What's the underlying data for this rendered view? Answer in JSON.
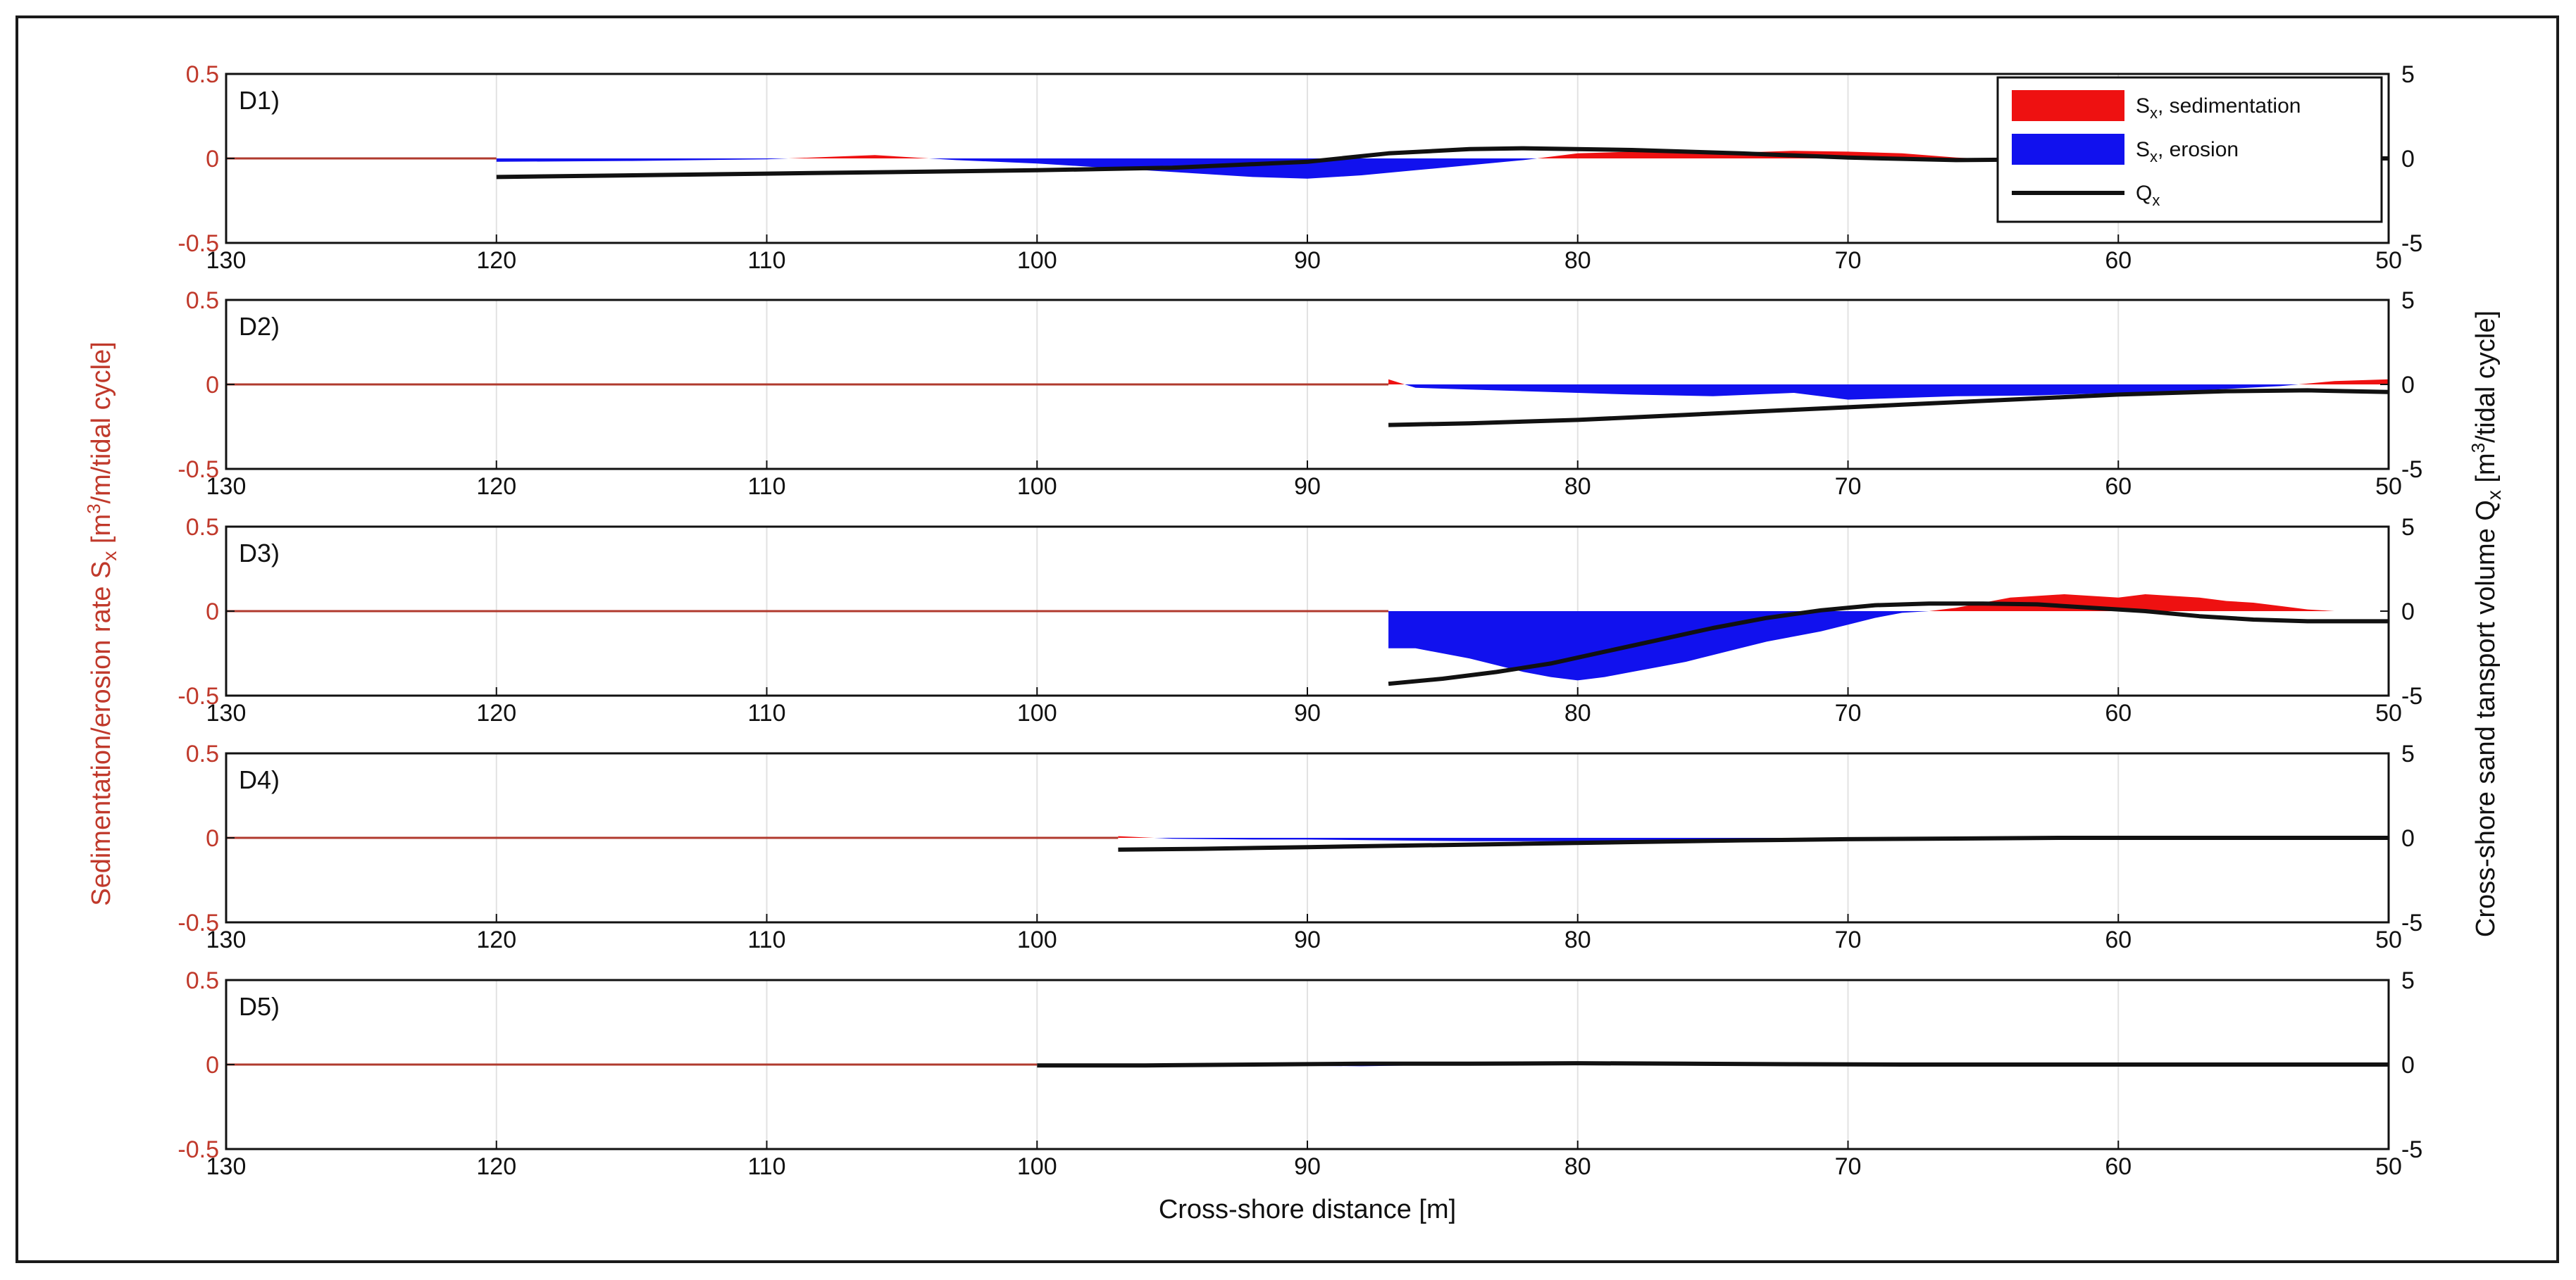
{
  "chart_data": {
    "type": "area",
    "xlabel": "Cross-shore distance [m]",
    "ylabel_left": "Sedimentation/erosion rate S_x [m³/m/tidal cycle]",
    "ylabel_left_parts": [
      "Sedimentation/erosion rate S",
      "x",
      " [m",
      "3",
      "/m/tidal cycle]"
    ],
    "ylabel_right": "Cross-shore sand tansport volume Q_x [m³/tidal cycle]",
    "ylabel_right_parts": [
      "Cross-shore sand tansport volume Q",
      "x",
      " [m",
      "3",
      "/tidal cycle]"
    ],
    "xlim": [
      130,
      50
    ],
    "x_reversed": true,
    "x_ticks": [
      130,
      120,
      110,
      100,
      90,
      80,
      70,
      60,
      50
    ],
    "ylim_left": [
      -0.5,
      0.5
    ],
    "y_ticks_left": [
      "0.5",
      "0",
      "-0.5"
    ],
    "ylim_right": [
      -5,
      5
    ],
    "y_ticks_right": [
      "5",
      "0",
      "-5"
    ],
    "grid": "vertical",
    "legend": {
      "placement": "top-right",
      "entries": [
        {
          "label": "S",
          "sub": "x",
          "suffix": ", sedimentation",
          "color": "#ee1111",
          "kind": "patch"
        },
        {
          "label": "S",
          "sub": "x",
          "suffix": ", erosion",
          "color": "#1111ee",
          "kind": "patch"
        },
        {
          "label": "Q",
          "sub": "x",
          "suffix": "",
          "color": "#111111",
          "kind": "line"
        }
      ]
    },
    "colors": {
      "sedimentation": "#ee1111",
      "erosion": "#1111ee",
      "transport": "#111111",
      "baseline": "#b03a2e"
    },
    "panels": [
      {
        "label": "D1)",
        "start_x": 120,
        "S_x": [
          [
            120,
            -0.02
          ],
          [
            115,
            -0.015
          ],
          [
            110,
            -0.005
          ],
          [
            106,
            0.02
          ],
          [
            103,
            -0.01
          ],
          [
            100,
            -0.03
          ],
          [
            97,
            -0.06
          ],
          [
            94,
            -0.09
          ],
          [
            92,
            -0.11
          ],
          [
            90,
            -0.12
          ],
          [
            88,
            -0.1
          ],
          [
            86,
            -0.07
          ],
          [
            84,
            -0.04
          ],
          [
            82,
            -0.01
          ],
          [
            80,
            0.03
          ],
          [
            78,
            0.04
          ],
          [
            76,
            0.04
          ],
          [
            74,
            0.035
          ],
          [
            72,
            0.045
          ],
          [
            70,
            0.04
          ],
          [
            68,
            0.03
          ],
          [
            66,
            0.005
          ],
          [
            64,
            -0.01
          ],
          [
            62,
            0.005
          ],
          [
            60,
            -0.005
          ],
          [
            55,
            0.0
          ],
          [
            50,
            0.0
          ]
        ],
        "Q_x": [
          [
            120,
            -1.1
          ],
          [
            110,
            -0.9
          ],
          [
            100,
            -0.7
          ],
          [
            95,
            -0.55
          ],
          [
            90,
            -0.2
          ],
          [
            87,
            0.3
          ],
          [
            84,
            0.55
          ],
          [
            82,
            0.6
          ],
          [
            78,
            0.5
          ],
          [
            74,
            0.3
          ],
          [
            70,
            0.05
          ],
          [
            66,
            -0.1
          ],
          [
            62,
            -0.05
          ],
          [
            58,
            0.0
          ],
          [
            55,
            0.0
          ],
          [
            50,
            0.0
          ]
        ]
      },
      {
        "label": "D2)",
        "start_x": 87,
        "S_x": [
          [
            87,
            0.03
          ],
          [
            86,
            -0.02
          ],
          [
            84,
            -0.03
          ],
          [
            82,
            -0.04
          ],
          [
            80,
            -0.05
          ],
          [
            78,
            -0.06
          ],
          [
            75,
            -0.07
          ],
          [
            72,
            -0.05
          ],
          [
            70,
            -0.09
          ],
          [
            68,
            -0.08
          ],
          [
            66,
            -0.07
          ],
          [
            63,
            -0.065
          ],
          [
            60,
            -0.05
          ],
          [
            57,
            -0.035
          ],
          [
            54,
            -0.01
          ],
          [
            52,
            0.02
          ],
          [
            50,
            0.03
          ]
        ],
        "Q_x": [
          [
            87,
            -2.4
          ],
          [
            84,
            -2.3
          ],
          [
            80,
            -2.1
          ],
          [
            76,
            -1.8
          ],
          [
            72,
            -1.5
          ],
          [
            68,
            -1.2
          ],
          [
            64,
            -0.9
          ],
          [
            60,
            -0.6
          ],
          [
            56,
            -0.4
          ],
          [
            53,
            -0.35
          ],
          [
            50,
            -0.45
          ]
        ]
      },
      {
        "label": "D3)",
        "start_x": 87,
        "S_x": [
          [
            87,
            -0.22
          ],
          [
            86,
            -0.22
          ],
          [
            85,
            -0.25
          ],
          [
            84,
            -0.28
          ],
          [
            83,
            -0.32
          ],
          [
            82,
            -0.36
          ],
          [
            81,
            -0.39
          ],
          [
            80,
            -0.41
          ],
          [
            79,
            -0.39
          ],
          [
            78,
            -0.36
          ],
          [
            77,
            -0.33
          ],
          [
            76,
            -0.3
          ],
          [
            75,
            -0.26
          ],
          [
            74,
            -0.22
          ],
          [
            73,
            -0.18
          ],
          [
            72,
            -0.15
          ],
          [
            71,
            -0.12
          ],
          [
            70,
            -0.08
          ],
          [
            69,
            -0.04
          ],
          [
            68,
            -0.01
          ],
          [
            67,
            0.0
          ],
          [
            66,
            0.02
          ],
          [
            65,
            0.05
          ],
          [
            64,
            0.08
          ],
          [
            63,
            0.09
          ],
          [
            62,
            0.1
          ],
          [
            61,
            0.09
          ],
          [
            60,
            0.08
          ],
          [
            59,
            0.1
          ],
          [
            58,
            0.09
          ],
          [
            57,
            0.08
          ],
          [
            56,
            0.06
          ],
          [
            55,
            0.05
          ],
          [
            54,
            0.03
          ],
          [
            53,
            0.01
          ],
          [
            52,
            0.0
          ],
          [
            50,
            0.0
          ]
        ],
        "Q_x": [
          [
            87,
            -4.3
          ],
          [
            85,
            -4.0
          ],
          [
            83,
            -3.6
          ],
          [
            81,
            -3.1
          ],
          [
            79,
            -2.4
          ],
          [
            77,
            -1.7
          ],
          [
            75,
            -1.0
          ],
          [
            73,
            -0.4
          ],
          [
            71,
            0.05
          ],
          [
            69,
            0.35
          ],
          [
            67,
            0.45
          ],
          [
            65,
            0.45
          ],
          [
            63,
            0.4
          ],
          [
            61,
            0.2
          ],
          [
            59,
            0.0
          ],
          [
            57,
            -0.3
          ],
          [
            55,
            -0.5
          ],
          [
            53,
            -0.6
          ],
          [
            50,
            -0.6
          ]
        ]
      },
      {
        "label": "D4)",
        "start_x": 97,
        "S_x": [
          [
            97,
            0.01
          ],
          [
            95,
            -0.005
          ],
          [
            92,
            -0.01
          ],
          [
            90,
            -0.01
          ],
          [
            87,
            -0.015
          ],
          [
            84,
            -0.02
          ],
          [
            80,
            -0.02
          ],
          [
            76,
            -0.015
          ],
          [
            72,
            -0.01
          ],
          [
            68,
            -0.005
          ],
          [
            64,
            0.005
          ],
          [
            60,
            0.0
          ],
          [
            56,
            -0.005
          ],
          [
            53,
            0.005
          ],
          [
            50,
            0.0
          ]
        ],
        "Q_x": [
          [
            97,
            -0.7
          ],
          [
            94,
            -0.65
          ],
          [
            90,
            -0.55
          ],
          [
            86,
            -0.45
          ],
          [
            82,
            -0.35
          ],
          [
            78,
            -0.25
          ],
          [
            74,
            -0.15
          ],
          [
            70,
            -0.08
          ],
          [
            66,
            -0.04
          ],
          [
            62,
            0.0
          ],
          [
            58,
            0.0
          ],
          [
            54,
            0.0
          ],
          [
            50,
            0.0
          ]
        ]
      },
      {
        "label": "D5)",
        "start_x": 100,
        "S_x": [
          [
            100,
            0.0
          ],
          [
            96,
            -0.005
          ],
          [
            92,
            -0.005
          ],
          [
            88,
            -0.01
          ],
          [
            86,
            -0.005
          ],
          [
            84,
            0.005
          ],
          [
            80,
            0.005
          ],
          [
            76,
            0.0
          ],
          [
            70,
            0.0
          ],
          [
            60,
            0.0
          ],
          [
            50,
            0.0
          ]
        ],
        "Q_x": [
          [
            100,
            -0.05
          ],
          [
            96,
            -0.05
          ],
          [
            92,
            0.0
          ],
          [
            88,
            0.05
          ],
          [
            84,
            0.05
          ],
          [
            80,
            0.08
          ],
          [
            76,
            0.05
          ],
          [
            72,
            0.02
          ],
          [
            68,
            0.0
          ],
          [
            60,
            0.0
          ],
          [
            50,
            0.0
          ]
        ]
      }
    ]
  }
}
